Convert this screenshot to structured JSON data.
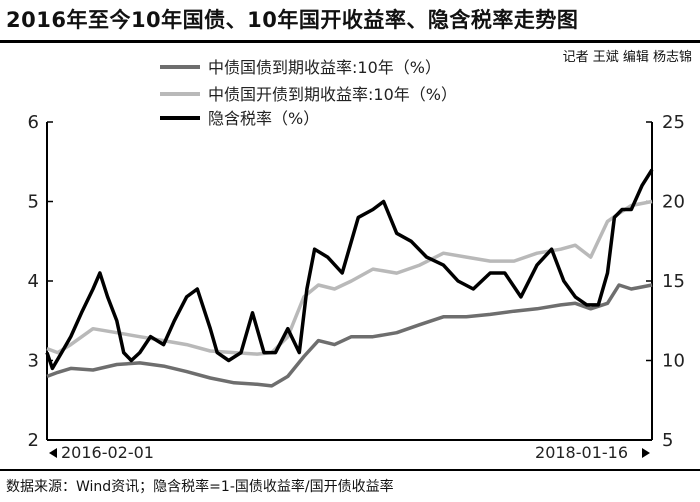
{
  "header": {
    "title": "2016年至今10年国债、10年国开收益率、隐含税率走势图",
    "author": "记者 王斌 编辑 杨志锦"
  },
  "footer": {
    "source": "数据来源：Wind资讯；隐含税率=1-国债收益率/国开债收益率"
  },
  "colors": {
    "guozhai": "#6e6e6e",
    "guokai": "#b9b9b9",
    "tax": "#000000"
  },
  "chart_data": {
    "type": "line",
    "title": "2016年至今10年国债、10年国开收益率、隐含税率走势图",
    "x_start_label": "2016-02-01",
    "x_end_label": "2018-01-16",
    "x_range": [
      "2016-01-01",
      "2018-02-28"
    ],
    "y_left": {
      "ticks": [
        "6",
        "5",
        "4",
        "3",
        "2"
      ],
      "range": [
        2,
        6
      ]
    },
    "y_right": {
      "ticks": [
        "25",
        "20",
        "15",
        "10",
        "5"
      ],
      "range": [
        5,
        25
      ]
    },
    "legend": [
      "中债国债到期收益率:10年（%）",
      "中债国开债到期收益率:10年（%）",
      "隐含税率（%）"
    ],
    "series": [
      {
        "name": "中债国债到期收益率:10年（%）",
        "axis": "left",
        "x": [
          "2016-01-01",
          "2016-01-15",
          "2016-02-01",
          "2016-03-01",
          "2016-04-01",
          "2016-05-01",
          "2016-06-01",
          "2016-07-01",
          "2016-08-01",
          "2016-09-01",
          "2016-10-01",
          "2016-10-20",
          "2016-11-10",
          "2016-12-01",
          "2016-12-20",
          "2017-01-10",
          "2017-02-01",
          "2017-03-01",
          "2017-04-01",
          "2017-05-01",
          "2017-06-01",
          "2017-07-01",
          "2017-08-01",
          "2017-09-01",
          "2017-10-01",
          "2017-11-01",
          "2017-11-20",
          "2017-12-10",
          "2018-01-01",
          "2018-01-16",
          "2018-02-01",
          "2018-02-28"
        ],
        "values": [
          2.8,
          2.85,
          2.9,
          2.88,
          2.95,
          2.97,
          2.93,
          2.86,
          2.78,
          2.72,
          2.7,
          2.68,
          2.8,
          3.05,
          3.25,
          3.2,
          3.3,
          3.3,
          3.35,
          3.45,
          3.55,
          3.55,
          3.58,
          3.62,
          3.65,
          3.7,
          3.72,
          3.65,
          3.72,
          3.95,
          3.9,
          3.95
        ]
      },
      {
        "name": "中债国开债到期收益率:10年（%）",
        "axis": "left",
        "x": [
          "2016-01-01",
          "2016-01-15",
          "2016-02-01",
          "2016-03-01",
          "2016-04-01",
          "2016-05-01",
          "2016-06-01",
          "2016-07-01",
          "2016-08-01",
          "2016-09-01",
          "2016-10-01",
          "2016-10-20",
          "2016-11-10",
          "2016-12-01",
          "2016-12-20",
          "2017-01-10",
          "2017-02-01",
          "2017-03-01",
          "2017-04-01",
          "2017-05-01",
          "2017-06-01",
          "2017-07-01",
          "2017-08-01",
          "2017-09-01",
          "2017-10-01",
          "2017-11-01",
          "2017-11-20",
          "2017-12-10",
          "2018-01-01",
          "2018-01-16",
          "2018-02-01",
          "2018-02-28"
        ],
        "values": [
          3.15,
          3.1,
          3.2,
          3.4,
          3.35,
          3.3,
          3.25,
          3.2,
          3.12,
          3.1,
          3.08,
          3.1,
          3.3,
          3.8,
          3.95,
          3.9,
          4.0,
          4.15,
          4.1,
          4.2,
          4.35,
          4.3,
          4.25,
          4.25,
          4.35,
          4.4,
          4.45,
          4.3,
          4.75,
          4.85,
          4.95,
          5.0
        ]
      },
      {
        "name": "隐含税率（%）",
        "axis": "right",
        "x": [
          "2016-01-01",
          "2016-01-08",
          "2016-01-20",
          "2016-02-01",
          "2016-02-15",
          "2016-03-01",
          "2016-03-10",
          "2016-03-20",
          "2016-04-01",
          "2016-04-10",
          "2016-04-20",
          "2016-05-01",
          "2016-05-15",
          "2016-06-01",
          "2016-06-15",
          "2016-07-01",
          "2016-07-15",
          "2016-08-01",
          "2016-08-10",
          "2016-08-25",
          "2016-09-10",
          "2016-09-25",
          "2016-10-10",
          "2016-10-25",
          "2016-11-10",
          "2016-11-25",
          "2016-12-05",
          "2016-12-15",
          "2017-01-01",
          "2017-01-20",
          "2017-02-10",
          "2017-03-01",
          "2017-03-15",
          "2017-04-01",
          "2017-04-20",
          "2017-05-10",
          "2017-06-01",
          "2017-06-20",
          "2017-07-10",
          "2017-08-01",
          "2017-08-20",
          "2017-09-10",
          "2017-10-01",
          "2017-10-20",
          "2017-11-05",
          "2017-11-20",
          "2017-12-05",
          "2017-12-20",
          "2018-01-01",
          "2018-01-10",
          "2018-01-20",
          "2018-02-01",
          "2018-02-15",
          "2018-02-28"
        ],
        "values": [
          10.5,
          9.5,
          10.5,
          11.5,
          13.0,
          14.5,
          15.5,
          14.0,
          12.5,
          10.5,
          10.0,
          10.5,
          11.5,
          11.0,
          12.5,
          14.0,
          14.5,
          12.0,
          10.5,
          10.0,
          10.5,
          13.0,
          10.5,
          10.5,
          12.0,
          10.5,
          14.5,
          17.0,
          16.5,
          15.5,
          19.0,
          19.5,
          20.0,
          18.0,
          17.5,
          16.5,
          16.0,
          15.0,
          14.5,
          15.5,
          15.5,
          14.0,
          16.0,
          17.0,
          15.0,
          14.0,
          13.5,
          13.5,
          15.5,
          19.0,
          19.5,
          19.5,
          21.0,
          22.0
        ]
      }
    ]
  }
}
